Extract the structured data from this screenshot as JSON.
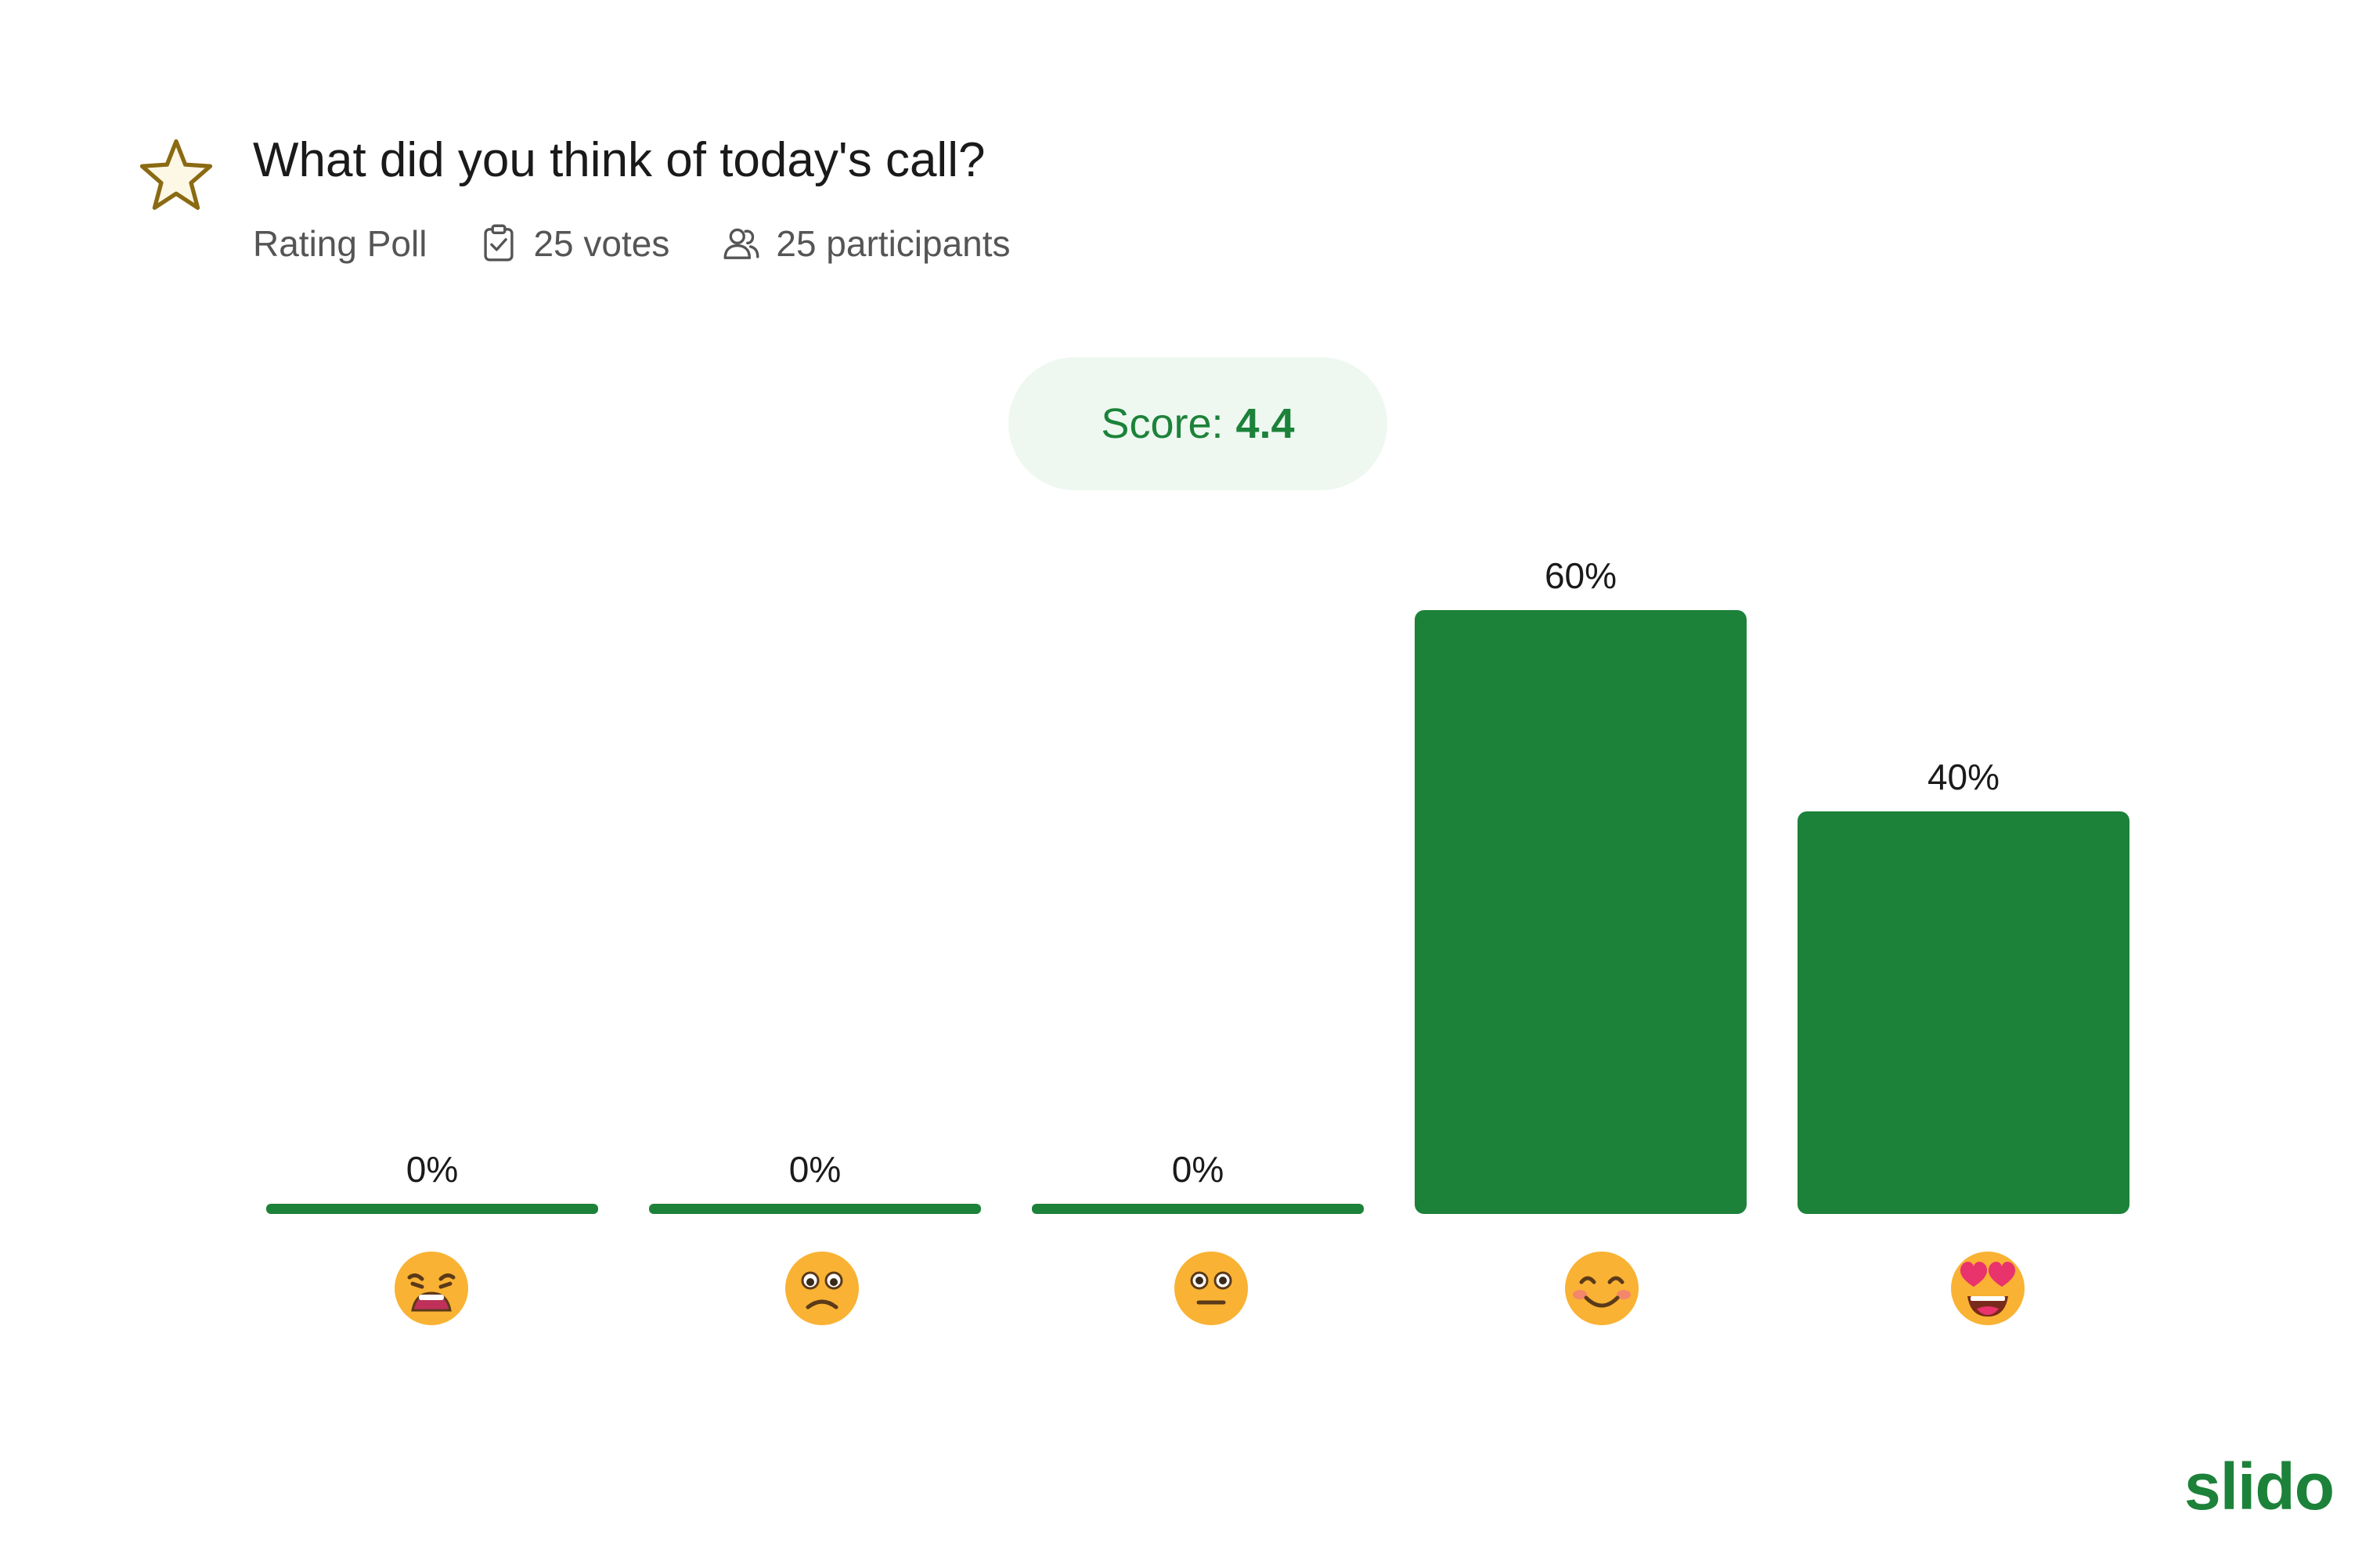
{
  "poll": {
    "title": "What did you think of today's call?",
    "type_label": "Rating Poll",
    "votes_label": "25 votes",
    "participants_label": "25 participants",
    "score_label": "Score:",
    "score_value": "4.4"
  },
  "icons": {
    "poll_type": "star-icon",
    "votes": "clipboard-check-icon",
    "participants": "people-icon"
  },
  "brand": {
    "name": "slido",
    "color": "#1c8239"
  },
  "chart_data": {
    "type": "bar",
    "categories": [
      "weary-face",
      "frowning-face",
      "neutral-face",
      "smiling-face",
      "heart-eyes-face"
    ],
    "values": [
      0,
      0,
      0,
      60,
      40
    ],
    "labels": [
      "0%",
      "0%",
      "0%",
      "60%",
      "40%"
    ],
    "ylim": [
      0,
      60
    ],
    "grid": false,
    "bar_color": "#1c8239"
  }
}
